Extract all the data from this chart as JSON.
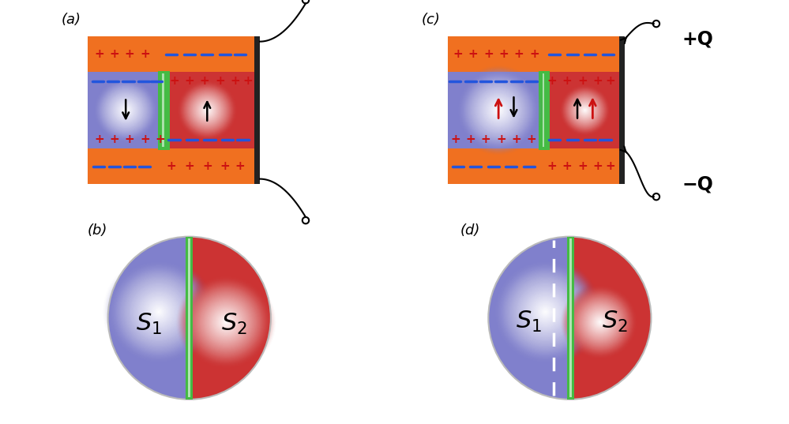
{
  "bg_color": "#ffffff",
  "orange": "#F07020",
  "purple": "#8080cc",
  "red_fill": "#cc3333",
  "green": "#44bb44",
  "blue_dash": "#2255dd",
  "red_charge": "#cc1111",
  "panel_a_label": "(a)",
  "panel_b_label": "(b)",
  "panel_c_label": "(c)",
  "panel_d_label": "(d)",
  "q_plus": "+Q",
  "q_minus": "−Q"
}
